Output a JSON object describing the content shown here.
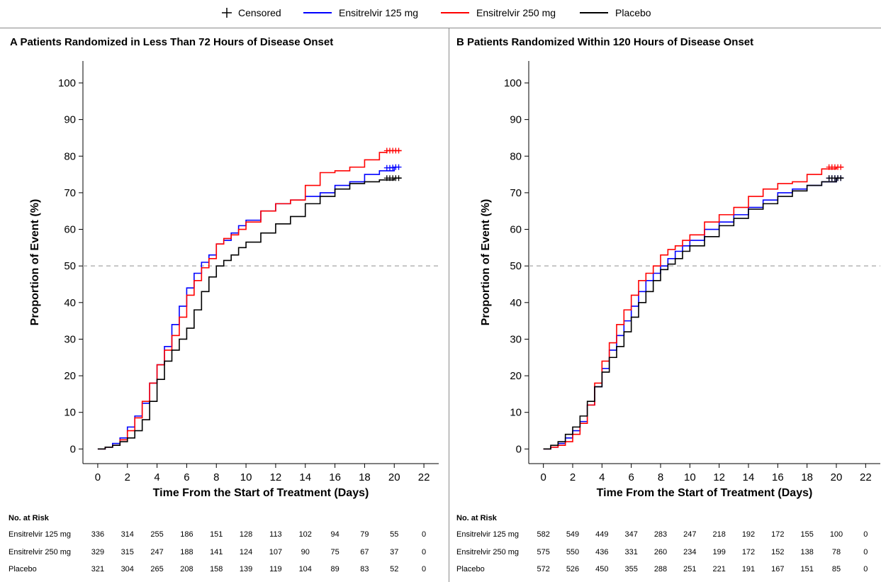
{
  "legend": {
    "censored_label": "Censored",
    "series": [
      {
        "name": "Ensitrelvir 125 mg",
        "color": "#0000ff"
      },
      {
        "name": "Ensitrelvir 250 mg",
        "color": "#ff0000"
      },
      {
        "name": "Placebo",
        "color": "#000000"
      }
    ]
  },
  "chart_data": [
    {
      "type": "line",
      "title": "A  Patients Randomized in Less Than 72 Hours of Disease Onset",
      "xlabel": "Time From the Start of Treatment (Days)",
      "ylabel": "Proportion of Event (%)",
      "xlim": [
        -1,
        23
      ],
      "ylim": [
        -4,
        106
      ],
      "xticks": [
        0,
        2,
        4,
        6,
        8,
        10,
        12,
        14,
        16,
        18,
        20,
        22
      ],
      "yticks": [
        0,
        10,
        20,
        30,
        40,
        50,
        60,
        70,
        80,
        90,
        100
      ],
      "reference_line_y": 50,
      "series": [
        {
          "name": "Ensitrelvir 125 mg",
          "color": "#0000ff",
          "x": [
            0,
            0.5,
            1,
            1.5,
            2,
            2.5,
            3,
            3.5,
            4,
            4.5,
            5,
            5.5,
            6,
            6.5,
            7,
            7.5,
            8,
            8.5,
            9,
            9.5,
            10,
            11,
            12,
            13,
            14,
            15,
            16,
            17,
            18,
            19,
            20,
            20.3
          ],
          "y": [
            0,
            0.5,
            1.5,
            3,
            6,
            9,
            12.5,
            18,
            23,
            28,
            34,
            39,
            44,
            48,
            51,
            53,
            56,
            57,
            59,
            61,
            62.5,
            65,
            67,
            68,
            69,
            70,
            72,
            73,
            75,
            76,
            77,
            77
          ],
          "censored": [
            {
              "x": 19.5,
              "y": 76.8
            },
            {
              "x": 19.7,
              "y": 76.8
            },
            {
              "x": 19.9,
              "y": 76.9
            },
            {
              "x": 20.1,
              "y": 77
            },
            {
              "x": 20.3,
              "y": 77
            }
          ]
        },
        {
          "name": "Ensitrelvir 250 mg",
          "color": "#ff0000",
          "x": [
            0,
            0.5,
            1,
            1.5,
            2,
            2.5,
            3,
            3.5,
            4,
            4.5,
            5,
            5.5,
            6,
            6.5,
            7,
            7.5,
            8,
            8.5,
            9,
            9.5,
            10,
            11,
            12,
            13,
            14,
            15,
            16,
            17,
            18,
            19,
            19.5,
            20,
            20.5
          ],
          "y": [
            0,
            0.5,
            1,
            2.5,
            5,
            8.5,
            13,
            18,
            23,
            27,
            31,
            36,
            42,
            46,
            49.5,
            52,
            56,
            57.5,
            58.5,
            60,
            62,
            65,
            67,
            68,
            72,
            75.5,
            76,
            77,
            79,
            81,
            81.5,
            81.5,
            81.5
          ],
          "censored": [
            {
              "x": 19.5,
              "y": 81.5
            },
            {
              "x": 19.7,
              "y": 81.5
            },
            {
              "x": 19.9,
              "y": 81.5
            },
            {
              "x": 20.1,
              "y": 81.5
            },
            {
              "x": 20.3,
              "y": 81.5
            }
          ]
        },
        {
          "name": "Placebo",
          "color": "#000000",
          "x": [
            0,
            0.5,
            1,
            1.5,
            2,
            2.5,
            3,
            3.5,
            4,
            4.5,
            5,
            5.5,
            6,
            6.5,
            7,
            7.5,
            8,
            8.5,
            9,
            9.5,
            10,
            11,
            12,
            13,
            14,
            15,
            16,
            17,
            18,
            19,
            20,
            20.5
          ],
          "y": [
            0,
            0.5,
            1,
            2,
            3,
            5,
            8,
            13,
            19,
            24,
            27,
            30,
            33,
            38,
            43,
            47,
            50,
            51.5,
            53,
            55,
            56.5,
            59,
            61.5,
            63.5,
            67,
            69,
            71,
            72.5,
            73,
            73.5,
            74,
            74
          ],
          "censored": [
            {
              "x": 19.5,
              "y": 74
            },
            {
              "x": 19.7,
              "y": 74
            },
            {
              "x": 19.9,
              "y": 74
            },
            {
              "x": 20.1,
              "y": 74
            },
            {
              "x": 20.3,
              "y": 74
            }
          ]
        }
      ],
      "risk_table": {
        "header": "No. at Risk",
        "rows": [
          {
            "label": "Ensitrelvir 125 mg",
            "values": [
              "336",
              "314",
              "255",
              "186",
              "151",
              "128",
              "113",
              "102",
              "94",
              "79",
              "55",
              "0"
            ]
          },
          {
            "label": "Ensitrelvir 250 mg",
            "values": [
              "329",
              "315",
              "247",
              "188",
              "141",
              "124",
              "107",
              "90",
              "75",
              "67",
              "37",
              "0"
            ]
          },
          {
            "label": "Placebo",
            "values": [
              "321",
              "304",
              "265",
              "208",
              "158",
              "139",
              "119",
              "104",
              "89",
              "83",
              "52",
              "0"
            ]
          }
        ]
      }
    },
    {
      "type": "line",
      "title": "B  Patients Randomized Within 120 Hours of Disease Onset",
      "xlabel": "Time From the Start of Treatment (Days)",
      "ylabel": "Proportion of Event (%)",
      "xlim": [
        -1,
        23
      ],
      "ylim": [
        -4,
        106
      ],
      "xticks": [
        0,
        2,
        4,
        6,
        8,
        10,
        12,
        14,
        16,
        18,
        20,
        22
      ],
      "yticks": [
        0,
        10,
        20,
        30,
        40,
        50,
        60,
        70,
        80,
        90,
        100
      ],
      "reference_line_y": 50,
      "series": [
        {
          "name": "Ensitrelvir 125 mg",
          "color": "#0000ff",
          "x": [
            0,
            0.5,
            1,
            1.5,
            2,
            2.5,
            3,
            3.5,
            4,
            4.5,
            5,
            5.5,
            6,
            6.5,
            7,
            7.5,
            8,
            8.5,
            9,
            9.5,
            10,
            11,
            12,
            13,
            14,
            15,
            16,
            17,
            18,
            19,
            20,
            20.5
          ],
          "y": [
            0,
            0.5,
            1.5,
            3,
            5,
            7.5,
            12,
            17,
            22,
            27,
            31,
            35,
            39,
            43,
            46,
            48,
            50,
            52,
            54,
            55.5,
            57,
            60,
            62,
            64,
            66,
            68,
            70,
            71,
            72,
            73,
            74,
            74
          ],
          "censored": [
            {
              "x": 19.5,
              "y": 74
            },
            {
              "x": 19.7,
              "y": 74
            },
            {
              "x": 19.9,
              "y": 74
            },
            {
              "x": 20.1,
              "y": 74
            },
            {
              "x": 20.3,
              "y": 74
            }
          ]
        },
        {
          "name": "Ensitrelvir 250 mg",
          "color": "#ff0000",
          "x": [
            0,
            0.5,
            1,
            1.5,
            2,
            2.5,
            3,
            3.5,
            4,
            4.5,
            5,
            5.5,
            6,
            6.5,
            7,
            7.5,
            8,
            8.5,
            9,
            9.5,
            10,
            11,
            12,
            13,
            14,
            15,
            16,
            17,
            18,
            19,
            20,
            20.5
          ],
          "y": [
            0,
            0.5,
            1,
            2,
            4,
            7,
            12,
            18,
            24,
            29,
            34,
            38,
            42,
            46,
            48,
            50,
            53,
            54.5,
            55.5,
            57,
            58.5,
            62,
            64,
            66,
            69,
            71,
            72.5,
            73,
            75,
            76.5,
            77,
            77
          ],
          "censored": [
            {
              "x": 19.5,
              "y": 77
            },
            {
              "x": 19.7,
              "y": 77
            },
            {
              "x": 19.9,
              "y": 77
            },
            {
              "x": 20.1,
              "y": 77
            },
            {
              "x": 20.3,
              "y": 77
            }
          ]
        },
        {
          "name": "Placebo",
          "color": "#000000",
          "x": [
            0,
            0.5,
            1,
            1.5,
            2,
            2.5,
            3,
            3.5,
            4,
            4.5,
            5,
            5.5,
            6,
            6.5,
            7,
            7.5,
            8,
            8.5,
            9,
            9.5,
            10,
            11,
            12,
            13,
            14,
            15,
            16,
            17,
            18,
            19,
            20,
            20.5
          ],
          "y": [
            0,
            1,
            2,
            4,
            6,
            9,
            13,
            17,
            21,
            25,
            28,
            32,
            36,
            40,
            43,
            46,
            49,
            50.5,
            52,
            54,
            55.5,
            58,
            61,
            63,
            65.5,
            67,
            69,
            70.5,
            72,
            73,
            74,
            74
          ],
          "censored": [
            {
              "x": 19.5,
              "y": 74
            },
            {
              "x": 19.7,
              "y": 74
            },
            {
              "x": 19.9,
              "y": 74
            },
            {
              "x": 20.1,
              "y": 74
            },
            {
              "x": 20.3,
              "y": 74
            }
          ]
        }
      ],
      "risk_table": {
        "header": "No. at Risk",
        "rows": [
          {
            "label": "Ensitrelvir 125 mg",
            "values": [
              "582",
              "549",
              "449",
              "347",
              "283",
              "247",
              "218",
              "192",
              "172",
              "155",
              "100",
              "0"
            ]
          },
          {
            "label": "Ensitrelvir 250 mg",
            "values": [
              "575",
              "550",
              "436",
              "331",
              "260",
              "234",
              "199",
              "172",
              "152",
              "138",
              "78",
              "0"
            ]
          },
          {
            "label": "Placebo",
            "values": [
              "572",
              "526",
              "450",
              "355",
              "288",
              "251",
              "221",
              "191",
              "167",
              "151",
              "85",
              "0"
            ]
          }
        ]
      }
    }
  ]
}
